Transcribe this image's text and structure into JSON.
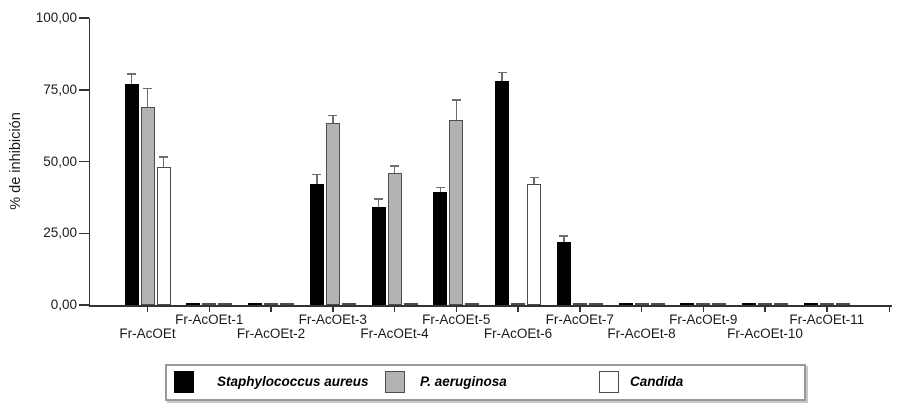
{
  "chart_data": {
    "type": "bar",
    "title": "",
    "ylabel": "% de inhibición",
    "xlabel": "",
    "ylim": [
      0,
      100
    ],
    "grid": false,
    "legend_position": "bottom",
    "ytick_values": [
      0,
      25,
      50,
      75,
      100
    ],
    "ytick_labels": [
      "0,00",
      "25,00",
      "50,00",
      "75,00",
      "100,00"
    ],
    "categories": [
      "Fr-AcOEt",
      "Fr-AcOEt-1",
      "Fr-AcOEt-2",
      "Fr-AcOEt-3",
      "Fr-AcOEt-4",
      "Fr-AcOEt-5",
      "Fr-AcOEt-6",
      "Fr-AcOEt-7",
      "Fr-AcOEt-8",
      "Fr-AcOEt-9",
      "Fr-AcOEt-10",
      "Fr-AcOEt-11"
    ],
    "series": [
      {
        "name": "Staphylococcus aureus",
        "color": "#000000",
        "border_color": "#000000",
        "values": [
          77,
          0.6,
          0.6,
          42,
          34,
          39.5,
          78,
          22,
          0.6,
          0.6,
          0.6,
          0.6
        ],
        "errors_plus": [
          3.5,
          0,
          0,
          3.5,
          3,
          1.5,
          3,
          2,
          0,
          0,
          0,
          0
        ]
      },
      {
        "name": "P. aeruginosa",
        "color": "#b3b3b3",
        "border_color": "#4d4d4d",
        "values": [
          69,
          0.6,
          0.6,
          63.5,
          46,
          64.5,
          0.6,
          0.6,
          0.6,
          0.6,
          0.6,
          0.6
        ],
        "errors_plus": [
          6.5,
          0,
          0,
          2.5,
          2.5,
          7,
          0,
          0,
          0,
          0,
          0,
          0
        ]
      },
      {
        "name": "Candida",
        "color": "#ffffff",
        "border_color": "#4d4d4d",
        "values": [
          48,
          0.6,
          0.6,
          0.6,
          0.6,
          0.6,
          42,
          0.6,
          0.6,
          0.6,
          0.6,
          0.6
        ],
        "errors_plus": [
          3.5,
          0,
          0,
          0,
          0,
          0,
          2.5,
          0,
          0,
          0,
          0,
          0
        ]
      }
    ],
    "error_bar_color": "#6e6e6e",
    "axis_color": "#333333"
  }
}
